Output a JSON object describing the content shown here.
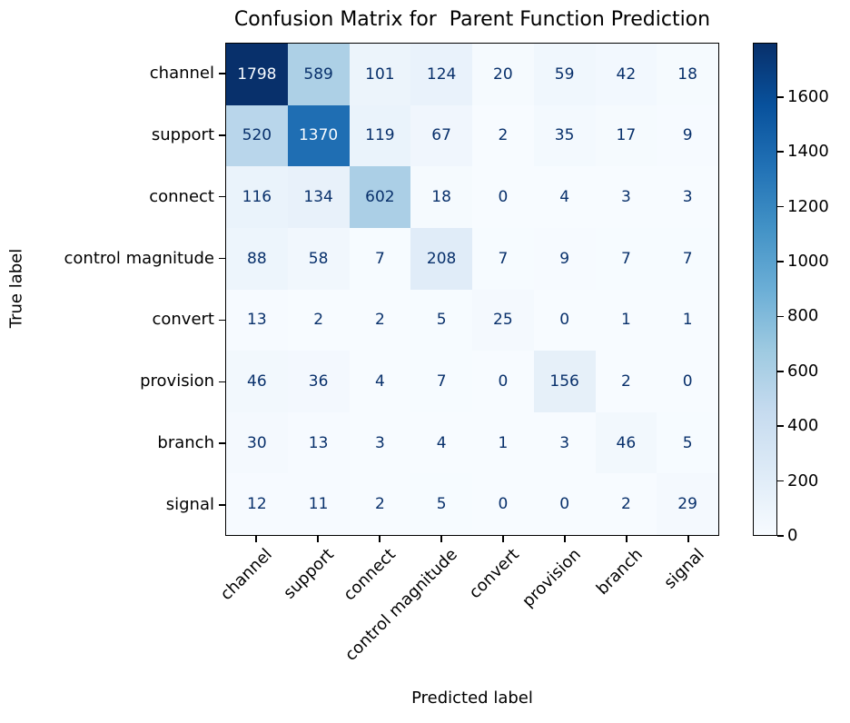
{
  "chart_data": {
    "type": "heatmap",
    "title": "Confusion Matrix for  Parent Function Prediction",
    "xlabel": "Predicted label",
    "ylabel": "True label",
    "categories": [
      "channel",
      "support",
      "connect",
      "control magnitude",
      "convert",
      "provision",
      "branch",
      "signal"
    ],
    "matrix": [
      [
        1798,
        589,
        101,
        124,
        20,
        59,
        42,
        18
      ],
      [
        520,
        1370,
        119,
        67,
        2,
        35,
        17,
        9
      ],
      [
        116,
        134,
        602,
        18,
        0,
        4,
        3,
        3
      ],
      [
        88,
        58,
        7,
        208,
        7,
        9,
        7,
        7
      ],
      [
        13,
        2,
        2,
        5,
        25,
        0,
        1,
        1
      ],
      [
        46,
        36,
        4,
        7,
        0,
        156,
        2,
        0
      ],
      [
        30,
        13,
        3,
        4,
        1,
        3,
        46,
        5
      ],
      [
        12,
        11,
        2,
        5,
        0,
        0,
        2,
        29
      ]
    ],
    "vmin": 0,
    "vmax": 1798,
    "colorbar_ticks": [
      0,
      200,
      400,
      600,
      800,
      1000,
      1200,
      1400,
      1600
    ],
    "colormap_name": "Blues",
    "colormap_stops": [
      "#f7fbff",
      "#deebf7",
      "#c6dbef",
      "#9ecae1",
      "#6baed6",
      "#4292c6",
      "#2171b5",
      "#08519c",
      "#08306b"
    ],
    "cell_text_dark": "#08306b",
    "cell_text_light": "#f7fbff",
    "spine_color": "#000000",
    "legend_position": "right-colorbar",
    "grid": false
  }
}
